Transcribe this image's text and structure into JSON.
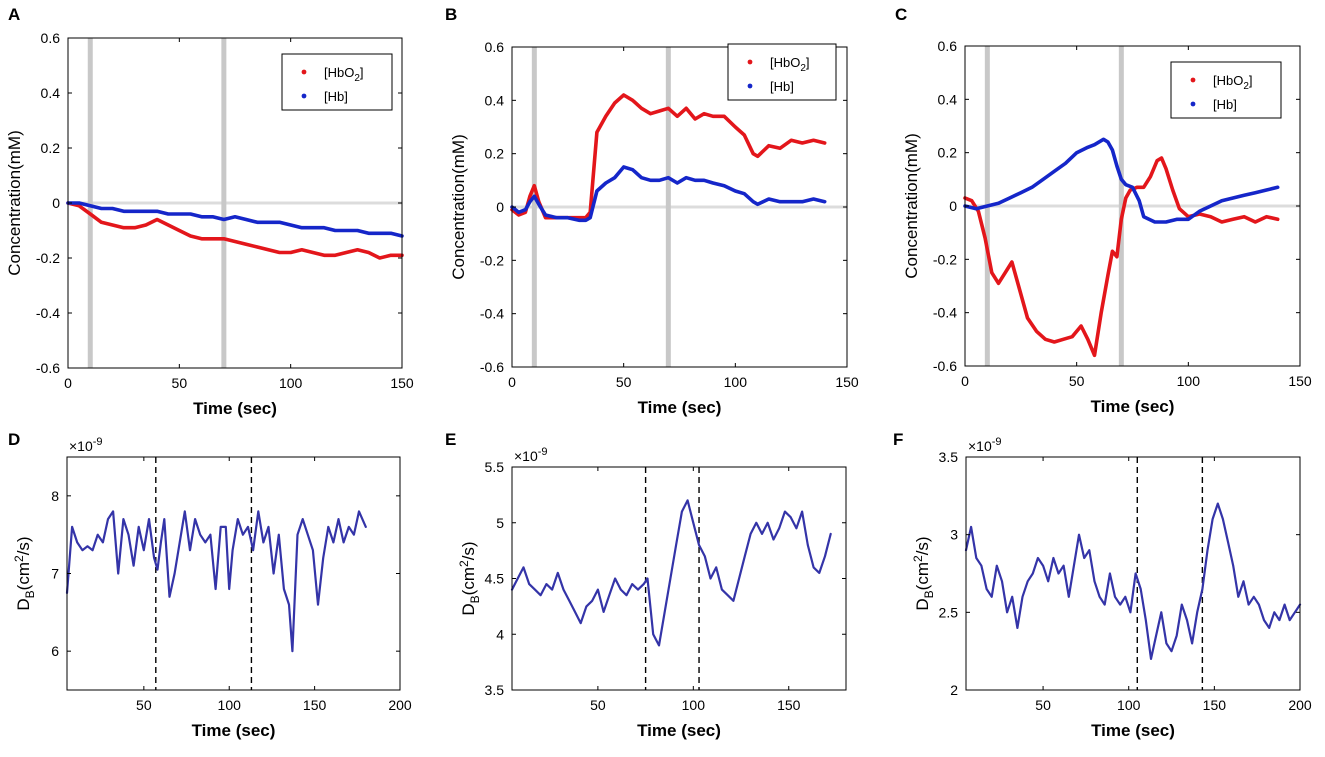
{
  "colors": {
    "hbo2": "#e3161b",
    "hb": "#1526c9",
    "db": "#3434a8",
    "event": "#c8c8c8",
    "zero": "#dcdcdc"
  },
  "chart_data": [
    {
      "panel": "A",
      "type": "line",
      "xlabel": "Time (sec)",
      "ylabel": "Concentration(mM)",
      "xlim": [
        0,
        150
      ],
      "ylim": [
        -0.6,
        0.6
      ],
      "xticks": [
        0,
        50,
        100,
        150
      ],
      "yticks": [
        -0.6,
        -0.4,
        -0.2,
        0,
        0.2,
        0.4,
        0.6
      ],
      "ytick_labels": [
        "-0.6",
        "-0.4",
        "-0.2",
        "0",
        "0.2",
        "0.4",
        "0.6"
      ],
      "event_lines": [
        10,
        70
      ],
      "event_style": "gray-band",
      "zero_line": true,
      "legend": {
        "position": "top-right",
        "entries": [
          "[HbO2]",
          "[Hb]"
        ]
      },
      "series": [
        {
          "name": "[HbO2]",
          "x": [
            0,
            5,
            10,
            15,
            20,
            25,
            30,
            35,
            40,
            45,
            50,
            55,
            60,
            65,
            70,
            75,
            80,
            85,
            90,
            95,
            100,
            105,
            110,
            115,
            120,
            125,
            130,
            135,
            140,
            145,
            150
          ],
          "values": [
            0,
            -0.01,
            -0.04,
            -0.07,
            -0.08,
            -0.09,
            -0.09,
            -0.08,
            -0.06,
            -0.08,
            -0.1,
            -0.12,
            -0.13,
            -0.13,
            -0.13,
            -0.14,
            -0.15,
            -0.16,
            -0.17,
            -0.18,
            -0.18,
            -0.17,
            -0.18,
            -0.19,
            -0.19,
            -0.18,
            -0.17,
            -0.18,
            -0.2,
            -0.19,
            -0.19
          ]
        },
        {
          "name": "[Hb]",
          "x": [
            0,
            5,
            10,
            15,
            20,
            25,
            30,
            35,
            40,
            45,
            50,
            55,
            60,
            65,
            70,
            75,
            80,
            85,
            90,
            95,
            100,
            105,
            110,
            115,
            120,
            125,
            130,
            135,
            140,
            145,
            150
          ],
          "values": [
            0,
            0,
            -0.01,
            -0.02,
            -0.02,
            -0.03,
            -0.03,
            -0.03,
            -0.03,
            -0.04,
            -0.04,
            -0.04,
            -0.05,
            -0.05,
            -0.06,
            -0.05,
            -0.06,
            -0.07,
            -0.07,
            -0.07,
            -0.08,
            -0.09,
            -0.09,
            -0.09,
            -0.1,
            -0.1,
            -0.1,
            -0.11,
            -0.11,
            -0.11,
            -0.12
          ]
        }
      ]
    },
    {
      "panel": "B",
      "type": "line",
      "xlabel": "Time (sec)",
      "ylabel": "Concentration(mM)",
      "xlim": [
        0,
        150
      ],
      "ylim": [
        -0.6,
        0.6
      ],
      "xticks": [
        0,
        50,
        100,
        150
      ],
      "yticks": [
        -0.6,
        -0.4,
        -0.2,
        0,
        0.2,
        0.4,
        0.6
      ],
      "ytick_labels": [
        "-0.6",
        "-0.4",
        "-0.2",
        "0",
        "0.2",
        "0.4",
        "0.6"
      ],
      "event_lines": [
        10,
        70
      ],
      "event_style": "gray-band",
      "zero_line": true,
      "legend": {
        "position": "top-right",
        "entries": [
          "[HbO2]",
          "[Hb]"
        ]
      },
      "series": [
        {
          "name": "[HbO2]",
          "x": [
            0,
            3,
            6,
            8,
            10,
            12,
            15,
            20,
            25,
            30,
            33,
            35,
            38,
            42,
            46,
            50,
            54,
            58,
            62,
            66,
            70,
            74,
            78,
            82,
            86,
            90,
            95,
            100,
            104,
            108,
            110,
            115,
            120,
            125,
            130,
            135,
            140
          ],
          "values": [
            -0.01,
            -0.03,
            -0.02,
            0.04,
            0.08,
            0.02,
            -0.04,
            -0.04,
            -0.04,
            -0.04,
            -0.04,
            -0.02,
            0.28,
            0.34,
            0.39,
            0.42,
            0.4,
            0.37,
            0.35,
            0.36,
            0.37,
            0.34,
            0.37,
            0.33,
            0.35,
            0.34,
            0.34,
            0.3,
            0.27,
            0.2,
            0.19,
            0.23,
            0.22,
            0.25,
            0.24,
            0.25,
            0.24
          ]
        },
        {
          "name": "[Hb]",
          "x": [
            0,
            3,
            6,
            8,
            10,
            12,
            15,
            20,
            25,
            30,
            33,
            35,
            38,
            42,
            46,
            50,
            54,
            58,
            62,
            66,
            70,
            74,
            78,
            82,
            86,
            90,
            95,
            100,
            104,
            108,
            110,
            115,
            120,
            125,
            130,
            135,
            140
          ],
          "values": [
            0,
            -0.02,
            -0.01,
            0.02,
            0.04,
            0.01,
            -0.03,
            -0.04,
            -0.04,
            -0.05,
            -0.05,
            -0.04,
            0.06,
            0.09,
            0.11,
            0.15,
            0.14,
            0.11,
            0.1,
            0.1,
            0.11,
            0.09,
            0.11,
            0.1,
            0.1,
            0.09,
            0.08,
            0.06,
            0.05,
            0.02,
            0.01,
            0.03,
            0.02,
            0.02,
            0.02,
            0.03,
            0.02
          ]
        }
      ]
    },
    {
      "panel": "C",
      "type": "line",
      "xlabel": "Time (sec)",
      "ylabel": "Concentration(mM)",
      "xlim": [
        0,
        150
      ],
      "ylim": [
        -0.6,
        0.6
      ],
      "xticks": [
        0,
        50,
        100,
        150
      ],
      "yticks": [
        -0.6,
        -0.4,
        -0.2,
        0,
        0.2,
        0.4,
        0.6
      ],
      "ytick_labels": [
        "-0.6",
        "-0.4",
        "-0.2",
        "0",
        "0.2",
        "0.4",
        "0.6"
      ],
      "event_lines": [
        10,
        70
      ],
      "event_style": "gray-band",
      "zero_line": true,
      "legend": {
        "position": "top-right",
        "entries": [
          "[HbO2]",
          "[Hb]"
        ]
      },
      "series": [
        {
          "name": "[HbO2]",
          "x": [
            0,
            3,
            6,
            9,
            12,
            15,
            18,
            21,
            24,
            28,
            32,
            36,
            40,
            44,
            48,
            52,
            55,
            58,
            61,
            64,
            66,
            68,
            70,
            72,
            74,
            77,
            80,
            83,
            86,
            88,
            90,
            93,
            96,
            100,
            105,
            110,
            115,
            120,
            125,
            130,
            135,
            140
          ],
          "values": [
            0.03,
            0.02,
            -0.02,
            -0.12,
            -0.25,
            -0.29,
            -0.25,
            -0.21,
            -0.3,
            -0.42,
            -0.47,
            -0.5,
            -0.51,
            -0.5,
            -0.49,
            -0.45,
            -0.5,
            -0.56,
            -0.4,
            -0.26,
            -0.17,
            -0.19,
            -0.05,
            0.03,
            0.06,
            0.07,
            0.07,
            0.11,
            0.17,
            0.18,
            0.14,
            0.06,
            -0.01,
            -0.04,
            -0.03,
            -0.04,
            -0.06,
            -0.05,
            -0.04,
            -0.06,
            -0.04,
            -0.05
          ]
        },
        {
          "name": "[Hb]",
          "x": [
            0,
            5,
            10,
            15,
            20,
            25,
            30,
            35,
            40,
            45,
            50,
            55,
            58,
            62,
            64,
            66,
            68,
            70,
            72,
            75,
            78,
            80,
            85,
            90,
            95,
            100,
            105,
            110,
            115,
            120,
            125,
            130,
            135,
            140
          ],
          "values": [
            0,
            -0.01,
            0,
            0.01,
            0.03,
            0.05,
            0.07,
            0.1,
            0.13,
            0.16,
            0.2,
            0.22,
            0.23,
            0.25,
            0.24,
            0.21,
            0.15,
            0.1,
            0.08,
            0.07,
            0.02,
            -0.04,
            -0.06,
            -0.06,
            -0.05,
            -0.05,
            -0.02,
            0,
            0.02,
            0.03,
            0.04,
            0.05,
            0.06,
            0.07
          ]
        }
      ]
    },
    {
      "panel": "D",
      "type": "line",
      "xlabel": "Time (sec)",
      "ylabel": "D_B(cm^2/s)",
      "exponent": "×10-9",
      "xlim": [
        5,
        200
      ],
      "ylim": [
        5.5,
        8.5
      ],
      "xticks": [
        50,
        100,
        150,
        200
      ],
      "yticks": [
        6,
        7,
        8
      ],
      "ytick_labels": [
        "6",
        "7",
        "8"
      ],
      "event_lines": [
        57,
        113
      ],
      "event_style": "dashed",
      "series": [
        {
          "name": "D_B",
          "x": [
            5,
            8,
            11,
            14,
            17,
            20,
            23,
            26,
            29,
            32,
            35,
            38,
            41,
            44,
            47,
            50,
            53,
            56,
            58,
            60,
            62,
            65,
            68,
            71,
            74,
            77,
            80,
            83,
            86,
            89,
            92,
            95,
            98,
            100,
            102,
            105,
            108,
            111,
            114,
            117,
            120,
            123,
            126,
            129,
            132,
            135,
            137,
            140,
            143,
            146,
            149,
            152,
            155,
            158,
            161,
            164,
            167,
            170,
            173,
            176,
            180
          ],
          "values": [
            6.75,
            7.6,
            7.4,
            7.3,
            7.35,
            7.3,
            7.5,
            7.4,
            7.7,
            7.8,
            7.0,
            7.7,
            7.5,
            7.1,
            7.6,
            7.3,
            7.7,
            7.2,
            7.05,
            7.4,
            7.7,
            6.7,
            7.0,
            7.4,
            7.8,
            7.3,
            7.7,
            7.5,
            7.4,
            7.5,
            6.8,
            7.6,
            7.6,
            6.8,
            7.3,
            7.7,
            7.5,
            7.6,
            7.3,
            7.8,
            7.4,
            7.6,
            7.0,
            7.5,
            6.8,
            6.6,
            6.0,
            7.5,
            7.7,
            7.5,
            7.3,
            6.6,
            7.2,
            7.6,
            7.4,
            7.7,
            7.4,
            7.6,
            7.5,
            7.8,
            7.6
          ]
        }
      ]
    },
    {
      "panel": "E",
      "type": "line",
      "xlabel": "Time (sec)",
      "ylabel": "D_B(cm^2/s)",
      "exponent": "×10-9",
      "xlim": [
        5,
        180
      ],
      "ylim": [
        3.5,
        5.5
      ],
      "xticks": [
        50,
        100,
        150
      ],
      "yticks": [
        3.5,
        4,
        4.5,
        5,
        5.5
      ],
      "ytick_labels": [
        "3.5",
        "4",
        "4.5",
        "5",
        "5.5"
      ],
      "event_lines": [
        75,
        103
      ],
      "event_style": "dashed",
      "series": [
        {
          "name": "D_B",
          "x": [
            5,
            8,
            11,
            14,
            17,
            20,
            23,
            26,
            29,
            32,
            35,
            38,
            41,
            44,
            47,
            50,
            53,
            56,
            59,
            62,
            65,
            68,
            71,
            74,
            76,
            79,
            82,
            85,
            88,
            91,
            94,
            97,
            100,
            103,
            106,
            109,
            112,
            115,
            118,
            121,
            124,
            127,
            130,
            133,
            136,
            139,
            142,
            145,
            148,
            151,
            154,
            157,
            160,
            163,
            166,
            169,
            172
          ],
          "values": [
            4.4,
            4.5,
            4.6,
            4.45,
            4.4,
            4.35,
            4.45,
            4.4,
            4.55,
            4.4,
            4.3,
            4.2,
            4.1,
            4.25,
            4.3,
            4.4,
            4.2,
            4.35,
            4.5,
            4.4,
            4.35,
            4.45,
            4.4,
            4.45,
            4.5,
            4.0,
            3.9,
            4.2,
            4.5,
            4.8,
            5.1,
            5.2,
            5.0,
            4.8,
            4.7,
            4.5,
            4.6,
            4.4,
            4.35,
            4.3,
            4.5,
            4.7,
            4.9,
            5.0,
            4.9,
            5.0,
            4.85,
            4.95,
            5.1,
            5.05,
            4.95,
            5.1,
            4.8,
            4.6,
            4.55,
            4.7,
            4.9
          ]
        }
      ]
    },
    {
      "panel": "F",
      "type": "line",
      "xlabel": "Time (sec)",
      "ylabel": "D_B(cm^2/s)",
      "exponent": "×10-9",
      "xlim": [
        5,
        200
      ],
      "ylim": [
        2,
        3.5
      ],
      "xticks": [
        50,
        100,
        150,
        200
      ],
      "yticks": [
        2,
        2.5,
        3,
        3.5
      ],
      "ytick_labels": [
        "2",
        "2.5",
        "3",
        "3.5"
      ],
      "event_lines": [
        105,
        143
      ],
      "event_style": "dashed",
      "series": [
        {
          "name": "D_B",
          "x": [
            5,
            8,
            11,
            14,
            17,
            20,
            23,
            26,
            29,
            32,
            35,
            38,
            41,
            44,
            47,
            50,
            53,
            56,
            59,
            62,
            65,
            68,
            71,
            74,
            77,
            80,
            83,
            86,
            89,
            92,
            95,
            98,
            101,
            104,
            107,
            110,
            113,
            116,
            119,
            122,
            125,
            128,
            131,
            134,
            137,
            140,
            143,
            146,
            149,
            152,
            155,
            158,
            161,
            164,
            167,
            170,
            173,
            176,
            179,
            182,
            185,
            188,
            191,
            194,
            197,
            200
          ],
          "values": [
            2.9,
            3.05,
            2.85,
            2.8,
            2.65,
            2.6,
            2.8,
            2.7,
            2.5,
            2.6,
            2.4,
            2.6,
            2.7,
            2.75,
            2.85,
            2.8,
            2.7,
            2.85,
            2.75,
            2.8,
            2.6,
            2.8,
            3.0,
            2.85,
            2.9,
            2.7,
            2.6,
            2.55,
            2.75,
            2.6,
            2.55,
            2.6,
            2.5,
            2.75,
            2.65,
            2.45,
            2.2,
            2.35,
            2.5,
            2.3,
            2.25,
            2.35,
            2.55,
            2.45,
            2.3,
            2.5,
            2.65,
            2.9,
            3.1,
            3.2,
            3.1,
            2.95,
            2.8,
            2.6,
            2.7,
            2.55,
            2.6,
            2.55,
            2.45,
            2.4,
            2.5,
            2.45,
            2.55,
            2.45,
            2.5,
            2.55
          ]
        }
      ]
    }
  ]
}
